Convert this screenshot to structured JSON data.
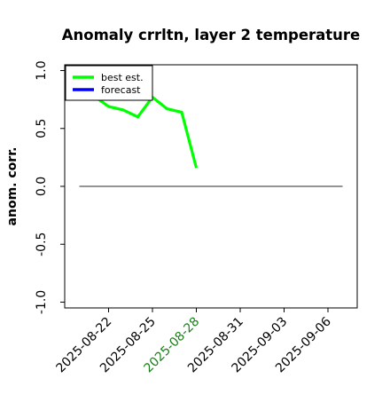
{
  "chart_data": {
    "type": "line",
    "title": "Anomaly crrltn, layer 2 temperature",
    "xlabel": "",
    "ylabel": "anom. corr.",
    "x_start": "2025-08-19",
    "xlim_dates": [
      "2025-08-19",
      "2025-09-08"
    ],
    "ylim": [
      -1.05,
      1.05
    ],
    "yticks": [
      1.0,
      0.5,
      0.0,
      -0.5,
      -1.0
    ],
    "ytick_labels": [
      "1.0",
      "0.5",
      "0.0",
      "-0.5",
      "-1.0"
    ],
    "xticks": [
      {
        "date": "2025-08-22",
        "label": "2025-08-22",
        "color": "#000000"
      },
      {
        "date": "2025-08-25",
        "label": "2025-08-25",
        "color": "#000000"
      },
      {
        "date": "2025-08-28",
        "label": "2025-08-28",
        "color": "#1a7f1a"
      },
      {
        "date": "2025-08-31",
        "label": "2025-08-31",
        "color": "#000000"
      },
      {
        "date": "2025-09-03",
        "label": "2025-09-03",
        "color": "#000000"
      },
      {
        "date": "2025-09-06",
        "label": "2025-09-06",
        "color": "#000000"
      }
    ],
    "series": [
      {
        "name": "best est.",
        "color": "#00ff00",
        "points": [
          {
            "x": "2025-08-21",
            "y": 0.78
          },
          {
            "x": "2025-08-22",
            "y": 0.69
          },
          {
            "x": "2025-08-23",
            "y": 0.66
          },
          {
            "x": "2025-08-24",
            "y": 0.6
          },
          {
            "x": "2025-08-25",
            "y": 0.77
          },
          {
            "x": "2025-08-26",
            "y": 0.67
          },
          {
            "x": "2025-08-27",
            "y": 0.64
          },
          {
            "x": "2025-08-28",
            "y": 0.16
          }
        ]
      },
      {
        "name": "forecast",
        "color": "#0000ff",
        "points": []
      }
    ],
    "zero_line": {
      "x_from": "2025-08-20",
      "x_to": "2025-09-07",
      "y": 0,
      "color": "#555555"
    },
    "legend_position": "top-left",
    "grid": false
  }
}
